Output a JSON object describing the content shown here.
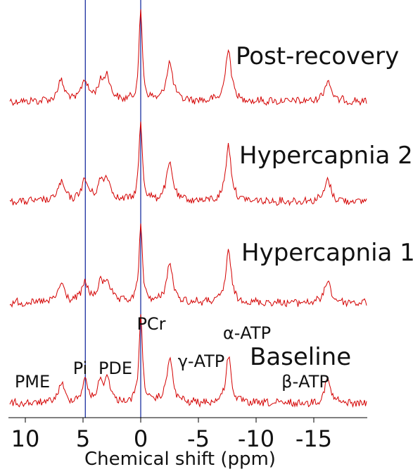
{
  "chart_data": {
    "type": "line",
    "title": "",
    "xlabel": "Chemical shift (ppm)",
    "ylabel": "",
    "xlim": [
      10.5,
      -19
    ],
    "x_reversed": true,
    "x_ticks": [
      10,
      5,
      0,
      -5,
      -10,
      -15
    ],
    "x_tick_labels": [
      "10",
      "5",
      "0",
      "-5",
      "-10",
      "-15"
    ],
    "grid": false,
    "line_color": "#d40000",
    "reference_line_color": "#1a2fa0",
    "reference_lines_ppm": [
      4.8,
      0
    ],
    "series": [
      {
        "name": "Post-recovery",
        "peaks": [
          {
            "ppm": 6.9,
            "height": 0.24
          },
          {
            "ppm": 4.85,
            "height": 0.24
          },
          {
            "ppm": 3.5,
            "height": 0.18
          },
          {
            "ppm": 2.9,
            "height": 0.27
          },
          {
            "ppm": 0.0,
            "height": 1.0
          },
          {
            "ppm": -2.5,
            "height": 0.45
          },
          {
            "ppm": -7.6,
            "height": 0.62
          },
          {
            "ppm": -16.2,
            "height": 0.25
          }
        ]
      },
      {
        "name": "Hypercapnia 2",
        "peaks": [
          {
            "ppm": 6.9,
            "height": 0.22
          },
          {
            "ppm": 4.85,
            "height": 0.24
          },
          {
            "ppm": 3.5,
            "height": 0.18
          },
          {
            "ppm": 2.9,
            "height": 0.25
          },
          {
            "ppm": 0.0,
            "height": 0.88
          },
          {
            "ppm": -2.5,
            "height": 0.43
          },
          {
            "ppm": -7.6,
            "height": 0.65
          },
          {
            "ppm": -16.2,
            "height": 0.24
          }
        ]
      },
      {
        "name": "Hypercapnia 1",
        "peaks": [
          {
            "ppm": 6.9,
            "height": 0.22
          },
          {
            "ppm": 4.85,
            "height": 0.22
          },
          {
            "ppm": 3.5,
            "height": 0.18
          },
          {
            "ppm": 2.9,
            "height": 0.24
          },
          {
            "ppm": 0.0,
            "height": 0.86
          },
          {
            "ppm": -2.5,
            "height": 0.44
          },
          {
            "ppm": -7.6,
            "height": 0.58
          },
          {
            "ppm": -16.2,
            "height": 0.25
          }
        ]
      },
      {
        "name": "Baseline",
        "peaks": [
          {
            "ppm": 6.9,
            "height": 0.22
          },
          {
            "ppm": 4.85,
            "height": 0.24
          },
          {
            "ppm": 3.5,
            "height": 0.19
          },
          {
            "ppm": 2.9,
            "height": 0.26
          },
          {
            "ppm": 0.0,
            "height": 1.0
          },
          {
            "ppm": -2.5,
            "height": 0.5
          },
          {
            "ppm": -7.6,
            "height": 0.53
          },
          {
            "ppm": -16.2,
            "height": 0.27
          }
        ]
      }
    ],
    "peak_labels": [
      {
        "text": "PME",
        "ppm": 6.9
      },
      {
        "text": "Pi",
        "ppm": 4.85
      },
      {
        "text": "PDE",
        "ppm": 2.9
      },
      {
        "text": "PCr",
        "ppm": 0.0
      },
      {
        "text": "γ-ATP",
        "ppm": -2.5
      },
      {
        "text": "α-ATP",
        "ppm": -7.6
      },
      {
        "text": "β-ATP",
        "ppm": -16.2
      }
    ]
  }
}
